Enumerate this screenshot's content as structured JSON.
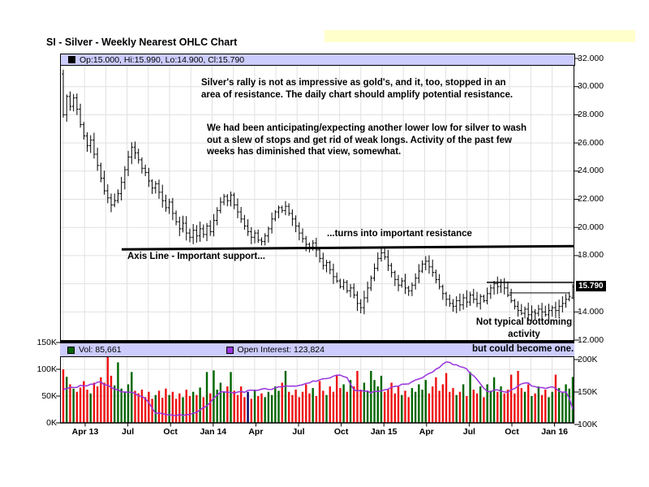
{
  "page": {
    "title": "SI - Silver - Weekly Nearest OHLC Chart"
  },
  "info_bar": {
    "text": "Op:15.000, Hi:15.990, Lo:14.900, Cl:15.790"
  },
  "legend": {
    "vol_label": "Vol: 85,661",
    "oi_label": "Open Interest: 123,824"
  },
  "annotations": {
    "rally_note": "Silver's rally is not as impressive as gold's, and it, too, stopped in an\narea of resistance.  The daily chart should amplify potential resistance.",
    "expecting_note": "We had been anticipating/expecting another lower low for silver to wash\nout a slew of stops and get rid of weak longs.  Activity of the past few\nweeks has diminished that view, somewhat.",
    "resistance_note": "...turns into important resistance",
    "support_note": "Axis Line - Important support...",
    "bottoming_note": "Not typical bottoming activity",
    "become_note": "but could become one."
  },
  "price_tag": "15.790",
  "axes": {
    "price_ticks": [
      {
        "label": "32.000",
        "value": 32
      },
      {
        "label": "30.000",
        "value": 30
      },
      {
        "label": "28.000",
        "value": 28
      },
      {
        "label": "26.000",
        "value": 26
      },
      {
        "label": "24.000",
        "value": 24
      },
      {
        "label": "22.000",
        "value": 22
      },
      {
        "label": "20.000",
        "value": 20
      },
      {
        "label": "18.000",
        "value": 18
      },
      {
        "label": "14.000",
        "value": 14
      },
      {
        "label": "12.000",
        "value": 12
      }
    ],
    "vol_left_ticks": [
      {
        "label": "150K",
        "value": 150
      },
      {
        "label": "100K",
        "value": 100
      },
      {
        "label": "50K",
        "value": 50
      },
      {
        "label": "0K",
        "value": 0
      }
    ],
    "vol_right_ticks": [
      {
        "label": "200K",
        "value": 200
      },
      {
        "label": "150K",
        "value": 150
      },
      {
        "label": "100K",
        "value": 100
      }
    ],
    "x_labels": [
      "Apr 13",
      "Jul",
      "Oct",
      "Jan 14",
      "Apr",
      "Jul",
      "Oct",
      "Jan 15",
      "Apr",
      "Jul",
      "Oct",
      "Jan 16"
    ]
  },
  "colors": {
    "lavender": "#ccccff",
    "yellow_highlight": "#ffffcc",
    "bar_black": "#000000",
    "volume_up_green": "#006600",
    "volume_down_red": "#ee1111",
    "volume_highlight_navy": "#000066",
    "open_interest_purple": "#9933dd",
    "grid_gray": "#e0e0e0",
    "tag_bg": "#000000",
    "tag_text": "#ffffff"
  },
  "chart_data": {
    "type": "ohlc",
    "title": "SI - Silver - Weekly Nearest OHLC Chart",
    "price_axis_range": [
      12,
      32
    ],
    "volume_axis_left_range_k": [
      0,
      150
    ],
    "open_interest_axis_right_range_k": [
      100,
      200
    ],
    "first_bar": {
      "open": 30.9,
      "high": 31.2,
      "low": 27.8,
      "close": 28.0
    },
    "last_bar": {
      "open": 15.0,
      "high": 15.99,
      "low": 14.9,
      "close": 15.79
    },
    "last_volume_k": 85.661,
    "last_open_interest_k": 123.824,
    "support_axis_line_price": 18.5,
    "short_resistance_line1_price": 16.1,
    "short_resistance_line2_price": 15.35,
    "weekly_closes": [
      28.0,
      29.3,
      28.6,
      29.2,
      28.4,
      27.3,
      26.5,
      25.8,
      26.2,
      25.2,
      24.4,
      23.5,
      22.6,
      22.1,
      21.6,
      21.9,
      22.4,
      23.2,
      24.1,
      25.0,
      25.7,
      25.3,
      24.8,
      24.2,
      23.9,
      23.3,
      22.8,
      23.1,
      22.5,
      21.9,
      21.4,
      21.8,
      21.0,
      20.4,
      19.9,
      20.3,
      19.6,
      19.3,
      19.8,
      19.4,
      19.9,
      19.5,
      20.1,
      19.7,
      20.5,
      21.2,
      21.8,
      22.2,
      21.9,
      22.3,
      21.6,
      21.1,
      20.6,
      20.1,
      19.7,
      19.3,
      19.6,
      19.1,
      19.0,
      19.4,
      19.9,
      20.6,
      21.1,
      21.4,
      21.2,
      21.5,
      21.0,
      20.6,
      20.1,
      19.6,
      19.2,
      18.8,
      18.6,
      18.9,
      18.4,
      17.8,
      17.3,
      17.5,
      17.0,
      16.5,
      16.2,
      15.8,
      16.1,
      15.5,
      15.7,
      15.2,
      14.6,
      14.3,
      15.0,
      15.7,
      16.4,
      17.1,
      17.8,
      18.2,
      17.9,
      17.3,
      16.8,
      16.3,
      15.9,
      16.2,
      15.7,
      15.5,
      15.9,
      16.4,
      16.9,
      17.4,
      17.6,
      17.2,
      16.8,
      16.3,
      15.8,
      15.3,
      14.9,
      14.6,
      14.4,
      14.8,
      14.5,
      15.0,
      14.7,
      15.2,
      14.9,
      14.6,
      15.1,
      14.8,
      15.3,
      15.7,
      16.0,
      15.8,
      16.1,
      15.7,
      15.2,
      14.8,
      14.4,
      14.1,
      13.9,
      14.2,
      13.8,
      14.0,
      13.9,
      14.2,
      14.0,
      13.8,
      14.1,
      14.3,
      14.1,
      14.4,
      14.6,
      14.9,
      15.1,
      15.79
    ],
    "weekly_volumes_k": [
      100,
      86,
      72,
      64,
      58,
      66,
      78,
      62,
      55,
      75,
      68,
      85,
      75,
      128,
      88,
      70,
      113,
      64,
      58,
      72,
      95,
      60,
      55,
      62,
      48,
      58,
      45,
      52,
      60,
      47,
      64,
      52,
      58,
      45,
      55,
      48,
      62,
      50,
      58,
      52,
      66,
      48,
      95,
      55,
      98,
      62,
      75,
      58,
      68,
      95,
      60,
      52,
      68,
      48,
      58,
      45,
      62,
      50,
      55,
      48,
      58,
      52,
      68,
      60,
      75,
      97,
      58,
      52,
      62,
      48,
      58,
      72,
      55,
      65,
      50,
      78,
      60,
      52,
      68,
      58,
      90,
      65,
      72,
      58,
      80,
      68,
      97,
      62,
      75,
      60,
      97,
      80,
      68,
      88,
      58,
      62,
      75,
      55,
      68,
      52,
      60,
      48,
      65,
      58,
      72,
      62,
      80,
      55,
      68,
      85,
      60,
      72,
      93,
      58,
      65,
      52,
      58,
      72,
      50,
      95,
      62,
      55,
      68,
      48,
      72,
      60,
      85,
      58,
      68,
      55,
      62,
      90,
      55,
      97,
      65,
      58,
      72,
      50,
      55,
      68,
      52,
      62,
      48,
      58,
      90,
      65,
      58,
      72,
      64,
      85.7
    ],
    "volume_highlight_week": 54,
    "open_interest_anchors_k": [
      [
        0,
        155
      ],
      [
        6,
        160
      ],
      [
        11,
        165
      ],
      [
        16,
        152
      ],
      [
        20,
        150
      ],
      [
        24,
        140
      ],
      [
        27,
        118
      ],
      [
        32,
        114
      ],
      [
        38,
        116
      ],
      [
        42,
        130
      ],
      [
        46,
        150
      ],
      [
        50,
        149
      ],
      [
        55,
        152
      ],
      [
        60,
        155
      ],
      [
        65,
        158
      ],
      [
        70,
        162
      ],
      [
        75,
        168
      ],
      [
        81,
        176
      ],
      [
        83,
        172
      ],
      [
        85,
        152
      ],
      [
        90,
        150
      ],
      [
        95,
        155
      ],
      [
        100,
        162
      ],
      [
        105,
        172
      ],
      [
        108,
        182
      ],
      [
        112,
        196
      ],
      [
        114,
        193
      ],
      [
        118,
        186
      ],
      [
        121,
        168
      ],
      [
        124,
        150
      ],
      [
        127,
        153
      ],
      [
        130,
        150
      ],
      [
        133,
        158
      ],
      [
        135,
        165
      ],
      [
        138,
        158
      ],
      [
        141,
        155
      ],
      [
        143,
        158
      ],
      [
        145,
        152
      ],
      [
        147,
        150
      ],
      [
        148,
        140
      ],
      [
        149,
        123.8
      ]
    ]
  }
}
